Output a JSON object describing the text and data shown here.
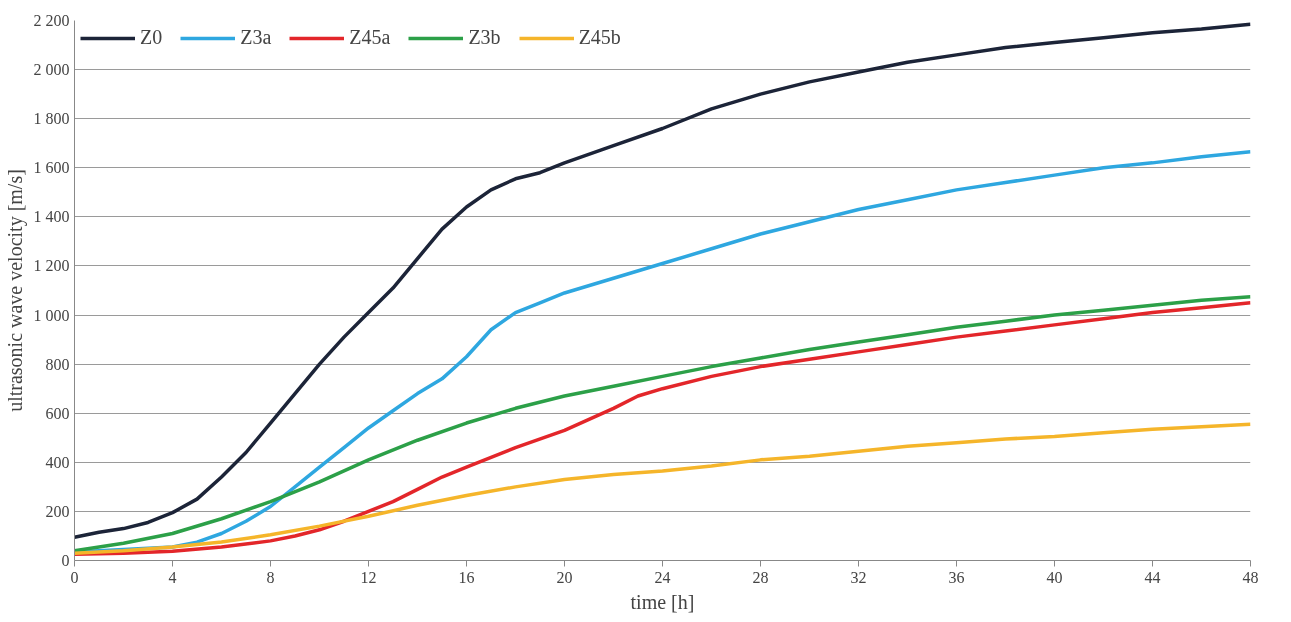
{
  "chart_data": {
    "type": "line",
    "xlabel": "time [h]",
    "ylabel": "ultrasonic wave velocity [m/s]",
    "xlim": [
      0,
      48
    ],
    "ylim": [
      0,
      2200
    ],
    "xticks": [
      0,
      4,
      8,
      12,
      16,
      20,
      24,
      28,
      32,
      36,
      40,
      44,
      48
    ],
    "yticks": [
      0,
      200,
      400,
      600,
      800,
      {
        "value": 1000,
        "label": "1 000"
      },
      {
        "value": 1200,
        "label": "1 200"
      },
      {
        "value": 1400,
        "label": "1 400"
      },
      {
        "value": 1600,
        "label": "1 600"
      },
      {
        "value": 1800,
        "label": "1 800"
      },
      {
        "value": 2000,
        "label": "2 000"
      },
      {
        "value": 2200,
        "label": "2 200"
      }
    ],
    "grid": "y",
    "legend": "top left",
    "marker": "none",
    "line_style": "solid",
    "series": [
      {
        "name": "Z0",
        "color": "#1c2438",
        "x": [
          0,
          1,
          2,
          3,
          4,
          5,
          6,
          7,
          8,
          9,
          10,
          11,
          12,
          13,
          14,
          15,
          16,
          17,
          18,
          19,
          20,
          22,
          24,
          26,
          28,
          30,
          32,
          34,
          36,
          38,
          40,
          42,
          44,
          46,
          48
        ],
        "values": [
          95,
          115,
          130,
          155,
          195,
          250,
          340,
          440,
          560,
          680,
          800,
          910,
          1010,
          1110,
          1230,
          1350,
          1440,
          1510,
          1555,
          1580,
          1620,
          1690,
          1760,
          1840,
          1900,
          1950,
          1990,
          2030,
          2060,
          2090,
          2110,
          2130,
          2150,
          2165,
          2185
        ]
      },
      {
        "name": "Z3a",
        "color": "#2ea7e0",
        "x": [
          0,
          4,
          5,
          6,
          7,
          8,
          9,
          10,
          11,
          12,
          13,
          14,
          15,
          16,
          17,
          18,
          19,
          20,
          22,
          24,
          26,
          28,
          30,
          32,
          34,
          36,
          38,
          40,
          42,
          44,
          46,
          48
        ],
        "values": [
          35,
          55,
          75,
          110,
          160,
          220,
          300,
          380,
          460,
          540,
          610,
          680,
          740,
          830,
          940,
          1010,
          1050,
          1090,
          1150,
          1210,
          1270,
          1330,
          1380,
          1430,
          1470,
          1510,
          1540,
          1570,
          1600,
          1620,
          1645,
          1665
        ]
      },
      {
        "name": "Z45a",
        "color": "#e3262a",
        "x": [
          0,
          2,
          4,
          6,
          8,
          9,
          10,
          11,
          12,
          13,
          14,
          15,
          16,
          18,
          20,
          22,
          23,
          24,
          26,
          28,
          30,
          32,
          34,
          36,
          38,
          40,
          42,
          44,
          46,
          48
        ],
        "values": [
          25,
          30,
          38,
          55,
          80,
          100,
          125,
          160,
          200,
          240,
          290,
          340,
          380,
          460,
          530,
          620,
          670,
          700,
          750,
          790,
          820,
          850,
          880,
          910,
          935,
          960,
          985,
          1010,
          1030,
          1050
        ]
      },
      {
        "name": "Z3b",
        "color": "#2ca048",
        "x": [
          0,
          2,
          4,
          6,
          8,
          10,
          12,
          14,
          16,
          18,
          20,
          22,
          24,
          26,
          28,
          30,
          32,
          34,
          36,
          38,
          40,
          42,
          44,
          46,
          48
        ],
        "values": [
          40,
          70,
          110,
          170,
          240,
          320,
          410,
          490,
          560,
          620,
          670,
          710,
          750,
          790,
          825,
          860,
          890,
          920,
          950,
          975,
          1000,
          1020,
          1040,
          1060,
          1075
        ]
      },
      {
        "name": "Z45b",
        "color": "#f5b52a",
        "x": [
          0,
          2,
          4,
          6,
          8,
          10,
          12,
          14,
          16,
          18,
          20,
          22,
          24,
          26,
          28,
          30,
          32,
          34,
          36,
          38,
          40,
          42,
          44,
          46,
          48
        ],
        "values": [
          30,
          40,
          55,
          75,
          105,
          140,
          180,
          225,
          265,
          300,
          330,
          350,
          365,
          385,
          410,
          425,
          445,
          465,
          480,
          495,
          505,
          520,
          535,
          545,
          555
        ]
      }
    ]
  }
}
